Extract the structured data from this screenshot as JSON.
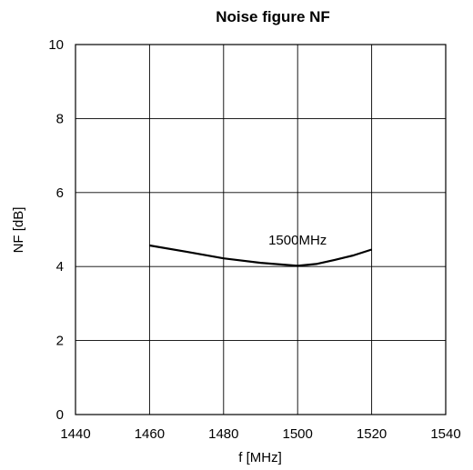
{
  "chart_data": {
    "type": "line",
    "title": "Noise figure NF",
    "xlabel": "f [MHz]",
    "ylabel": "NF [dB]",
    "xlim": [
      1440,
      1540
    ],
    "ylim": [
      0,
      10
    ],
    "xticks": [
      1440,
      1460,
      1480,
      1500,
      1520,
      1540
    ],
    "yticks": [
      0,
      2,
      4,
      6,
      8,
      10
    ],
    "grid": true,
    "series": [
      {
        "name": "1500MHz",
        "x": [
          1460,
          1470,
          1480,
          1490,
          1500,
          1505,
          1510,
          1515,
          1520
        ],
        "y": [
          4.57,
          4.4,
          4.22,
          4.1,
          4.02,
          4.07,
          4.18,
          4.3,
          4.46
        ]
      }
    ],
    "annotations": [
      {
        "text": "1500MHz",
        "x": 1500,
        "y": 4.6
      }
    ],
    "colors": {
      "line": "#000000",
      "grid": "#000000"
    }
  }
}
